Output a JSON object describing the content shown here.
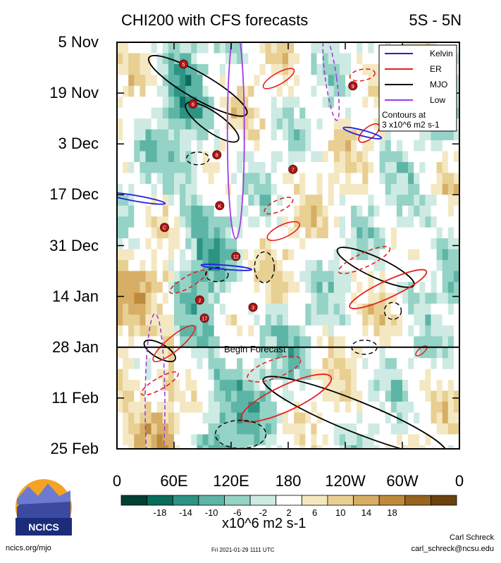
{
  "header": {
    "title": "CHI200 with CFS forecasts",
    "region": "5S - 5N"
  },
  "footer": {
    "site": "ncics.org/mjo",
    "timestamp": "Fri 2021-01-29 1111 UTC",
    "author": "Carl Schreck",
    "email": "carl_schreck@ncsu.edu",
    "logo_text": "NCICS"
  },
  "chart_data": {
    "type": "heatmap",
    "title": "CHI200 with CFS forecasts",
    "subtitle": "5S - 5N",
    "x_ticks": [
      "0",
      "60E",
      "120E",
      "180",
      "120W",
      "60W",
      "0"
    ],
    "x_tick_values": [
      0,
      60,
      120,
      180,
      240,
      300,
      360
    ],
    "y_ticks": [
      "5 Nov",
      "19 Nov",
      "3 Dec",
      "17 Dec",
      "31 Dec",
      "14 Jan",
      "28 Jan",
      "11 Feb",
      "25 Feb"
    ],
    "xlim": [
      0,
      360
    ],
    "ylim": [
      "5 Nov",
      "25 Feb"
    ],
    "forecast_line": {
      "date": "28 Jan",
      "label": "Begin Forecast"
    },
    "legend": {
      "position": "top-right",
      "entries": [
        {
          "name": "Kelvin",
          "color": "#1f1fe6"
        },
        {
          "name": "ER",
          "color": "#e61f1f"
        },
        {
          "name": "MJO",
          "color": "#000000"
        },
        {
          "name": "Low",
          "color": "#a23be0"
        }
      ],
      "note_line1": "Contours at",
      "note_line2": "3 x10^6 m2 s-1"
    },
    "colorbar": {
      "unit": "x10^6 m2 s-1",
      "labels": [
        "-18",
        "-14",
        "-10",
        "-6",
        "-2",
        "2",
        "6",
        "10",
        "14",
        "18"
      ],
      "colors": [
        "#003f34",
        "#0b6b5d",
        "#2d9383",
        "#5db5a6",
        "#94d3c6",
        "#cdeae3",
        "#ffffff",
        "#f4e8c2",
        "#e8cf92",
        "#d7ae65",
        "#bd8a3b",
        "#966420",
        "#6a420f"
      ]
    },
    "storms": [
      {
        "label": "5",
        "lon": 70,
        "date": "11 Nov"
      },
      {
        "label": "6",
        "lon": 80,
        "date": "22 Nov"
      },
      {
        "label": "8",
        "lon": 105,
        "date": "6 Dec"
      },
      {
        "label": "K",
        "lon": 108,
        "date": "20 Dec"
      },
      {
        "label": "C",
        "lon": 50,
        "date": "26 Dec"
      },
      {
        "label": "12",
        "lon": 125,
        "date": "3 Jan"
      },
      {
        "label": "2",
        "lon": 87,
        "date": "15 Jan"
      },
      {
        "label": "17",
        "lon": 92,
        "date": "20 Jan"
      },
      {
        "label": "3",
        "lon": 143,
        "date": "17 Jan"
      },
      {
        "label": "7",
        "lon": 185,
        "date": "10 Dec"
      },
      {
        "label": "9",
        "lon": 248,
        "date": "17 Nov"
      }
    ]
  }
}
